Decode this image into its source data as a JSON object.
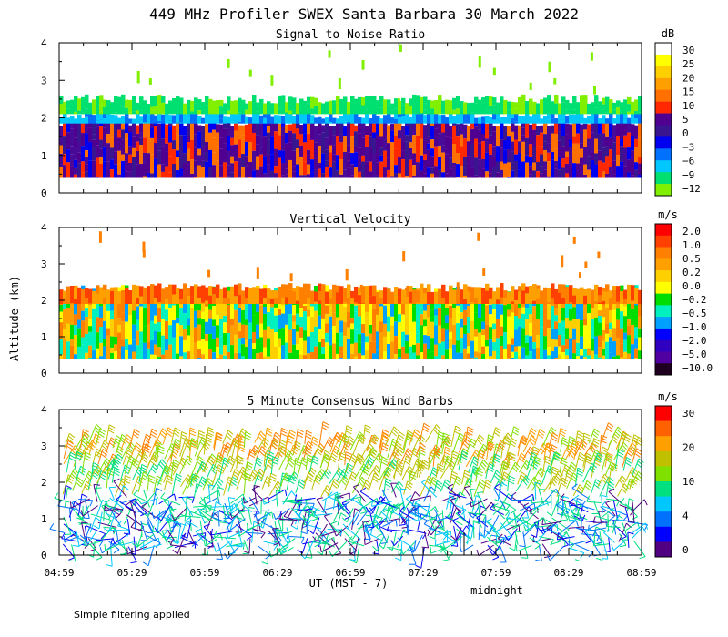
{
  "title": "449 MHz Profiler SWEX Santa Barbara 30 March 2022",
  "ylabel": "Altitude (km)",
  "xlabel": "UT  (MST - 7)",
  "midnight_label": "midnight",
  "footnote": "Simple filtering applied",
  "x_ticks": [
    "04:59",
    "05:29",
    "05:59",
    "06:29",
    "06:59",
    "07:29",
    "07:59",
    "08:29",
    "08:59"
  ],
  "chart_data": [
    {
      "type": "heatmap",
      "title": "Signal to Noise Ratio",
      "unit": "dB",
      "ylim": [
        0,
        4
      ],
      "y_ticks": [
        "0",
        "1",
        "2",
        "3",
        "4"
      ],
      "colorbar": {
        "labels": [
          "30",
          "25",
          "20",
          "15",
          "10",
          "5",
          "0",
          "−3",
          "−6",
          "−9",
          "−12"
        ],
        "colors": [
          "#ffffff",
          "#ffff00",
          "#ffd000",
          "#ffa000",
          "#ff7000",
          "#ff2800",
          "#500090",
          "#3a1590",
          "#0000f0",
          "#0070ff",
          "#00c8ff",
          "#00e070",
          "#80f000"
        ]
      },
      "layers": [
        {
          "name": "low",
          "y_min": 0.4,
          "y_max": 1.9,
          "colors": [
            "#500090",
            "#3a1590",
            "#4a0a98",
            "#500090",
            "#ff2800",
            "#ff7000",
            "#0000f0"
          ]
        },
        {
          "name": "mid",
          "y_min": 1.85,
          "y_max": 2.1,
          "colors": [
            "#0070ff",
            "#00c8ff",
            "#00c8ff"
          ]
        },
        {
          "name": "top",
          "y_min": 2.1,
          "y_max": 2.5,
          "colors": [
            "#00e070",
            "#80f000",
            "#00e070"
          ]
        }
      ]
    },
    {
      "type": "heatmap",
      "title": "Vertical Velocity",
      "unit": "m/s",
      "ylim": [
        0,
        4
      ],
      "y_ticks": [
        "0",
        "1",
        "2",
        "3",
        "4"
      ],
      "colorbar": {
        "labels": [
          "2.0",
          "1.0",
          "0.5",
          "0.2",
          "0.0",
          "−0.2",
          "−0.5",
          "−1.0",
          "−2.0",
          "−5.0",
          "−10.0"
        ],
        "colors": [
          "#ff0000",
          "#ff4000",
          "#ff8000",
          "#ffa000",
          "#ffd000",
          "#ffff00",
          "#00dd00",
          "#00f0c0",
          "#00a0ff",
          "#0000ff",
          "#3000c0",
          "#5000a0",
          "#200020"
        ]
      },
      "layers": [
        {
          "name": "low",
          "y_min": 0.4,
          "y_max": 2.3,
          "colors": [
            "#ffa000",
            "#ffd000",
            "#00dd00",
            "#00f0c0",
            "#00a0ff",
            "#ff8000",
            "#ffff00"
          ]
        },
        {
          "name": "top",
          "y_min": 1.9,
          "y_max": 2.35,
          "colors": [
            "#ff4000",
            "#ff8000",
            "#ffa000"
          ]
        }
      ]
    },
    {
      "type": "wind_barbs",
      "title": "5 Minute Consensus Wind Barbs",
      "unit": "m/s",
      "ylim": [
        0,
        4
      ],
      "y_ticks": [
        "0",
        "1",
        "2",
        "3",
        "4"
      ],
      "colorbar": {
        "labels": [
          "30",
          "20",
          "10",
          "4",
          "0"
        ],
        "colors": [
          "#ff0000",
          "#ff6000",
          "#ffa000",
          "#c0c000",
          "#80e000",
          "#00e080",
          "#00c8ff",
          "#0070ff",
          "#0000ff",
          "#500080"
        ]
      },
      "layers": [
        {
          "name": "upper",
          "y_min": 2.4,
          "y_max": 3.1,
          "colors": [
            "#ffa000",
            "#ff8000",
            "#c0c000",
            "#80e000"
          ]
        },
        {
          "name": "mid",
          "y_min": 1.6,
          "y_max": 2.4,
          "colors": [
            "#80e000",
            "#00e080",
            "#c0c000"
          ]
        },
        {
          "name": "low",
          "y_min": 0.2,
          "y_max": 1.6,
          "colors": [
            "#00e080",
            "#00c8ff",
            "#0070ff",
            "#0000ff",
            "#500080",
            "#00e080"
          ]
        }
      ]
    }
  ]
}
